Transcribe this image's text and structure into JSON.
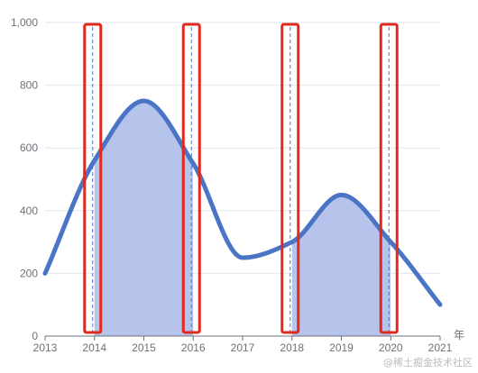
{
  "chart_data": {
    "type": "area",
    "x": [
      2013,
      2014,
      2015,
      2016,
      2017,
      2018,
      2019,
      2020,
      2021
    ],
    "values": [
      200,
      560,
      750,
      550,
      250,
      300,
      450,
      300,
      100
    ],
    "ylim": [
      0,
      1000
    ],
    "yticks": [
      0,
      200,
      400,
      600,
      800,
      1000
    ],
    "ytick_labels": [
      "0",
      "200",
      "400",
      "600",
      "800",
      "1,000"
    ],
    "xtick_labels": [
      "2013",
      "2014",
      "2015",
      "2016",
      "2017",
      "2018",
      "2019",
      "2020",
      "2021"
    ],
    "xlabel": "年",
    "ylabel": "",
    "grid": true,
    "shaded_ranges": [
      [
        2014,
        2016
      ],
      [
        2018,
        2020
      ]
    ],
    "highlighted_years": [
      2014,
      2016,
      2018,
      2020
    ],
    "colors": {
      "line": "#4a74c4",
      "area_fill": "#a9b9e6",
      "highlight_box": "#e02a1d",
      "marker_line": "#4a74c4",
      "grid": "#e0e6f1",
      "axis": "#6e7079"
    }
  },
  "watermark": "@稀土掘金技术社区"
}
